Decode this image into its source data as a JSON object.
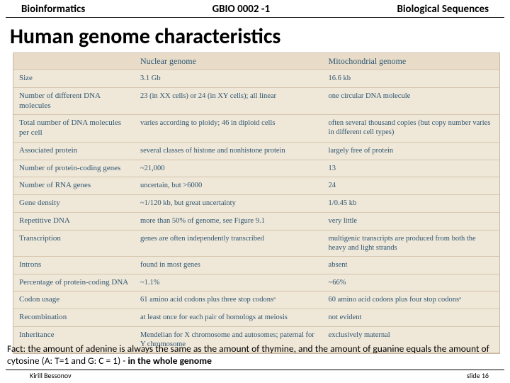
{
  "header": {
    "left": "Bioinformatics",
    "center": "GBIO 0002 -1",
    "right": "Biological Sequences"
  },
  "title": "Human genome characteristics",
  "table": {
    "columns": [
      "",
      "Nuclear genome",
      "Mitochondrial genome"
    ],
    "rows": [
      [
        "Size",
        "3.1 Gb",
        "16.6 kb"
      ],
      [
        "Number of different DNA molecules",
        "23 (in XX cells) or 24 (in XY cells); all linear",
        "one circular DNA molecule"
      ],
      [
        "Total number of DNA molecules per cell",
        "varies according to ploidy; 46 in diploid cells",
        "often several thousand copies (but copy number varies in different cell types)"
      ],
      [
        "Associated protein",
        "several classes of histone and nonhistone protein",
        "largely free of protein"
      ],
      [
        "Number of protein-coding genes",
        "~21,000",
        "13"
      ],
      [
        "Number of RNA genes",
        "uncertain, but >6000",
        "24"
      ],
      [
        "Gene density",
        "~1/120 kb, but great uncertainty",
        "1/0.45 kb"
      ],
      [
        "Repetitive DNA",
        "more than 50% of genome, see Figure 9.1",
        "very little"
      ],
      [
        "Transcription",
        "genes are often independently transcribed",
        "multigenic transcripts are produced from both the heavy and light strands"
      ],
      [
        "Introns",
        "found in most genes",
        "absent"
      ],
      [
        "Percentage of protein-coding DNA",
        "~1.1%",
        "~66%"
      ],
      [
        "Codon usage",
        "61 amino acid codons plus three stop codonsᵃ",
        "60 amino acid codons plus four stop codonsᵃ"
      ],
      [
        "Recombination",
        "at least once for each pair of homologs at meiosis",
        "not evident"
      ],
      [
        "Inheritance",
        "Mendelian for X chromosome and autosomes; paternal for Y chromosome",
        "exclusively maternal"
      ]
    ],
    "header_bg": "#e8dcc9",
    "cell_bg": "#efe7d8",
    "text_color": "#2f5772",
    "border_color": "#d6c6ae"
  },
  "fact": {
    "prefix": "Fact:  the amount of adenine is always the same as the amount of thymine, and the amount of guanine equals the amount of cytosine (A: T=1 and G: C = 1)  - ",
    "bold": "in the whole genome"
  },
  "footer": {
    "left": "Kirill Bessonov",
    "right": "slide 16"
  }
}
